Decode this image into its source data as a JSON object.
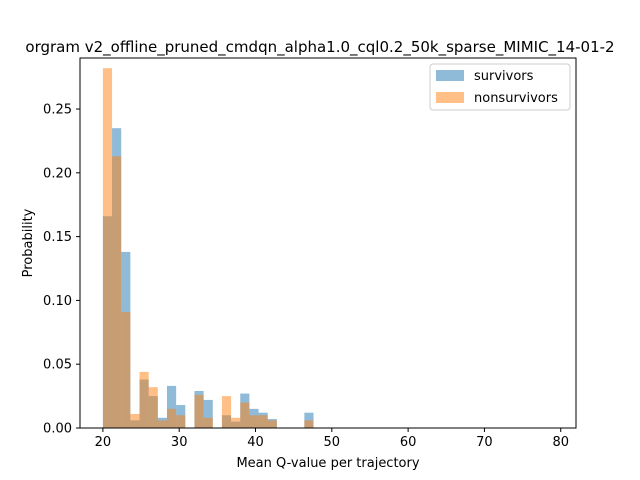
{
  "chart_data": {
    "type": "bar",
    "title": "orgram v2_offline_pruned_cmdqn_alpha1.0_cql0.2_50k_sparse_MIMIC_14-01-2",
    "xlabel": "Mean Q-value per trajectory",
    "ylabel": "Probability",
    "xlim": [
      17,
      82
    ],
    "ylim": [
      0,
      0.29
    ],
    "x_ticks": [
      20,
      30,
      40,
      50,
      60,
      70,
      80
    ],
    "y_ticks": [
      0.0,
      0.05,
      0.1,
      0.15,
      0.2,
      0.25
    ],
    "y_tick_labels": [
      "0.00",
      "0.05",
      "0.10",
      "0.15",
      "0.20",
      "0.25"
    ],
    "bin_start": 20,
    "bin_width": 1.2,
    "grid": false,
    "legend_position": "top-right",
    "series": [
      {
        "name": "survivors",
        "color": "#1f77b4",
        "opacity": 0.5,
        "values": [
          0.166,
          0.235,
          0.138,
          0.006,
          0.038,
          0.025,
          0.008,
          0.033,
          0.018,
          0.0,
          0.029,
          0.022,
          0.0,
          0.01,
          0.005,
          0.027,
          0.015,
          0.012,
          0.007,
          0.0,
          0.0,
          0.0,
          0.012,
          0.0
        ]
      },
      {
        "name": "nonsurvivors",
        "color": "#ff7f0e",
        "opacity": 0.5,
        "values": [
          0.282,
          0.213,
          0.091,
          0.011,
          0.044,
          0.032,
          0.006,
          0.015,
          0.01,
          0.0,
          0.026,
          0.008,
          0.0,
          0.025,
          0.008,
          0.02,
          0.01,
          0.01,
          0.006,
          0.0,
          0.0,
          0.0,
          0.006,
          0.0
        ]
      }
    ]
  }
}
